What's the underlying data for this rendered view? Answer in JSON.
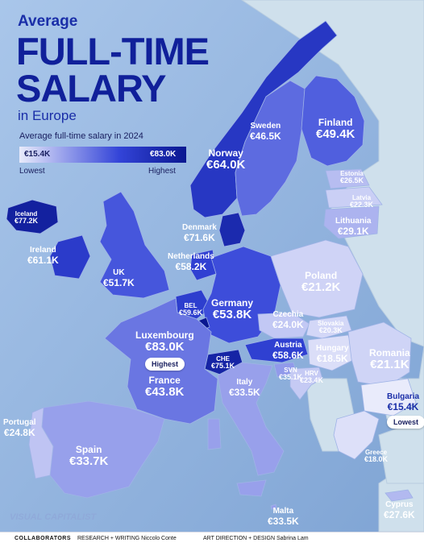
{
  "title": {
    "pre": "Average",
    "line1": "FULL-TIME",
    "line2": "SALARY",
    "post": "in Europe"
  },
  "subtitle": "Average full-time salary in 2024",
  "legend": {
    "min_label": "€15.4K",
    "max_label": "€83.0K",
    "low_text": "Lowest",
    "high_text": "Highest",
    "colors": [
      "#e9ebfb",
      "#3344d8",
      "#0a1790"
    ]
  },
  "colors": {
    "sea": "#8fb2dd",
    "nodata_land": "#cfe0ec",
    "title": "#10209a"
  },
  "countries": [
    {
      "name": "Iceland",
      "value": "€77.2K",
      "amount": 77.2
    },
    {
      "name": "Ireland",
      "value": "€61.1K",
      "amount": 61.1
    },
    {
      "name": "UK",
      "value": "€51.7K",
      "amount": 51.7
    },
    {
      "name": "Norway",
      "value": "€64.0K",
      "amount": 64.0
    },
    {
      "name": "Sweden",
      "value": "€46.5K",
      "amount": 46.5
    },
    {
      "name": "Finland",
      "value": "€49.4K",
      "amount": 49.4
    },
    {
      "name": "Estonia",
      "value": "€26.5K",
      "amount": 26.5
    },
    {
      "name": "Latvia",
      "value": "€22.3K",
      "amount": 22.3
    },
    {
      "name": "Lithuania",
      "value": "€29.1K",
      "amount": 29.1
    },
    {
      "name": "Denmark",
      "value": "€71.6K",
      "amount": 71.6
    },
    {
      "name": "Netherlands",
      "value": "€58.2K",
      "amount": 58.2
    },
    {
      "name": "BEL",
      "value": "€59.6K",
      "amount": 59.6
    },
    {
      "name": "Germany",
      "value": "€53.8K",
      "amount": 53.8
    },
    {
      "name": "Poland",
      "value": "€21.2K",
      "amount": 21.2
    },
    {
      "name": "Luxembourg",
      "value": "€83.0K",
      "amount": 83.0
    },
    {
      "name": "Czechia",
      "value": "€24.0K",
      "amount": 24.0
    },
    {
      "name": "Slovakia",
      "value": "€20.3K",
      "amount": 20.3
    },
    {
      "name": "Austria",
      "value": "€58.6K",
      "amount": 58.6
    },
    {
      "name": "Hungary",
      "value": "€18.5K",
      "amount": 18.5
    },
    {
      "name": "Romania",
      "value": "€21.1K",
      "amount": 21.1
    },
    {
      "name": "France",
      "value": "€43.8K",
      "amount": 43.8
    },
    {
      "name": "CHE",
      "value": "€75.1K",
      "amount": 75.1
    },
    {
      "name": "SVN",
      "value": "€35.1K",
      "amount": 35.1
    },
    {
      "name": "HRV",
      "value": "€23.4K",
      "amount": 23.4
    },
    {
      "name": "Italy",
      "value": "€33.5K",
      "amount": 33.5
    },
    {
      "name": "Bulgaria",
      "value": "€15.4K",
      "amount": 15.4
    },
    {
      "name": "Portugal",
      "value": "€24.8K",
      "amount": 24.8
    },
    {
      "name": "Spain",
      "value": "€33.7K",
      "amount": 33.7
    },
    {
      "name": "Greece",
      "value": "€18.0K",
      "amount": 18.0
    },
    {
      "name": "Malta",
      "value": "€33.5K",
      "amount": 33.5
    },
    {
      "name": "Cyprus",
      "value": "€27.6K",
      "amount": 27.6
    }
  ],
  "badges": {
    "highest": "Highest",
    "lowest": "Lowest"
  },
  "footer": {
    "collaborators": "COLLABORATORS",
    "research": "RESEARCH + WRITING Niccolo Conte",
    "art": "ART DIRECTION + DESIGN Sabrina Lam"
  },
  "logo_text": "VISUAL CAPITALIST"
}
